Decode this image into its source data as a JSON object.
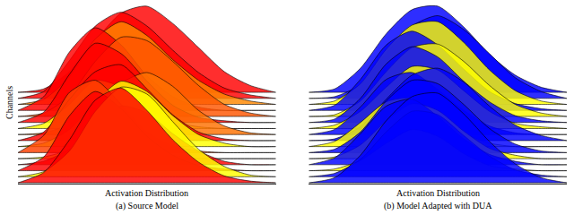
{
  "chart_data": [
    {
      "type": "ridgeline",
      "title": "(a) Source Model",
      "x_label": "Activation Distribution",
      "y_label": "Channels",
      "tick_labels": false,
      "xlim": [
        0,
        10
      ],
      "x": [
        0,
        1,
        2,
        3,
        4,
        5,
        6,
        7,
        8,
        9,
        10
      ],
      "series": [
        {
          "color": "#ff0000",
          "values": [
            0,
            0.6,
            2.5,
            4.8,
            5.5,
            4.2,
            2.5,
            1.2,
            0.4,
            0.1,
            0
          ]
        },
        {
          "color": "#ffff00",
          "values": [
            0,
            0.3,
            1.5,
            3.8,
            5.2,
            4.8,
            3.2,
            1.6,
            0.6,
            0.1,
            0
          ]
        },
        {
          "color": "#ff0000",
          "values": [
            0,
            0.8,
            3.2,
            4.6,
            3.6,
            2.0,
            0.9,
            0.3,
            0.1,
            0,
            0
          ]
        },
        {
          "color": "#ff0000",
          "values": [
            0,
            0.2,
            0.9,
            2.2,
            3.4,
            3.0,
            1.8,
            0.8,
            0.2,
            0,
            0
          ]
        },
        {
          "color": "#ffff00",
          "values": [
            0,
            0.1,
            0.5,
            1.2,
            1.0,
            0.5,
            0.2,
            0,
            0,
            0,
            0
          ]
        },
        {
          "color": "#ff4000",
          "values": [
            0,
            1.0,
            3.5,
            4.2,
            2.8,
            1.2,
            0.4,
            0.1,
            0,
            0,
            0
          ]
        },
        {
          "color": "#ffff00",
          "values": [
            0,
            0.2,
            1.0,
            2.6,
            3.8,
            3.2,
            1.8,
            0.7,
            0.2,
            0,
            0
          ]
        },
        {
          "color": "#ff0000",
          "values": [
            0,
            0.5,
            2.4,
            4.0,
            4.4,
            3.0,
            1.5,
            0.5,
            0.1,
            0,
            0
          ]
        },
        {
          "color": "#ff7000",
          "values": [
            0,
            0.1,
            0.6,
            1.8,
            3.0,
            3.6,
            2.8,
            1.4,
            0.5,
            0.1,
            0
          ]
        },
        {
          "color": "#ffff00",
          "values": [
            0,
            0.3,
            1.4,
            2.8,
            2.4,
            1.2,
            0.4,
            0.1,
            0,
            0,
            0
          ]
        },
        {
          "color": "#ff0000",
          "values": [
            0,
            0.6,
            2.8,
            4.6,
            4.0,
            2.4,
            1.0,
            0.3,
            0.1,
            0,
            0
          ]
        },
        {
          "color": "#ff5500",
          "values": [
            0,
            0.2,
            1.2,
            3.2,
            4.6,
            4.4,
            3.2,
            1.8,
            0.7,
            0.2,
            0
          ]
        },
        {
          "color": "#ff0000",
          "values": [
            0,
            0.8,
            3.4,
            4.8,
            3.8,
            2.0,
            0.8,
            0.2,
            0,
            0,
            0
          ]
        },
        {
          "color": "#ff8800",
          "values": [
            0,
            0.3,
            1.6,
            3.8,
            4.8,
            4.0,
            2.6,
            1.4,
            0.6,
            0.2,
            0
          ]
        },
        {
          "color": "#ff0000",
          "values": [
            0,
            0.4,
            2.2,
            4.2,
            5.0,
            4.2,
            2.8,
            1.5,
            0.6,
            0.2,
            0
          ]
        },
        {
          "color": "#ff0000",
          "values": [
            0,
            0.2,
            1.2,
            3.0,
            4.6,
            5.0,
            4.0,
            2.6,
            1.2,
            0.4,
            0
          ]
        }
      ]
    },
    {
      "type": "ridgeline",
      "title": "(b) Model Adapted with DUA",
      "x_label": "Activation Distribution",
      "tick_labels": false,
      "xlim": [
        0,
        10
      ],
      "x": [
        0,
        1,
        2,
        3,
        4,
        5,
        6,
        7,
        8,
        9,
        10
      ],
      "series": [
        {
          "color": "#0000ff",
          "values": [
            0,
            0.3,
            1.6,
            3.6,
            5.0,
            5.2,
            4.0,
            2.4,
            1.1,
            0.3,
            0
          ]
        },
        {
          "color": "#0000ff",
          "values": [
            0,
            0.2,
            1.0,
            2.6,
            3.8,
            3.6,
            2.4,
            1.2,
            0.4,
            0.1,
            0
          ]
        },
        {
          "color": "#ffff00",
          "values": [
            0,
            0.1,
            0.6,
            1.6,
            2.4,
            2.0,
            1.0,
            0.3,
            0.1,
            0,
            0
          ]
        },
        {
          "color": "#0000ff",
          "values": [
            0,
            0.4,
            1.8,
            3.4,
            3.8,
            2.8,
            1.5,
            0.6,
            0.2,
            0,
            0
          ]
        },
        {
          "color": "#ffff00",
          "values": [
            0,
            0.1,
            0.8,
            2.2,
            3.2,
            2.8,
            1.6,
            0.6,
            0.2,
            0,
            0
          ]
        },
        {
          "color": "#0000ff",
          "values": [
            0,
            0.2,
            1.2,
            3.0,
            4.2,
            4.0,
            2.8,
            1.4,
            0.5,
            0.1,
            0
          ]
        },
        {
          "color": "#ffff00",
          "values": [
            0,
            0.3,
            1.4,
            2.6,
            2.8,
            1.8,
            0.8,
            0.2,
            0,
            0,
            0
          ]
        },
        {
          "color": "#0000ff",
          "values": [
            0,
            0.1,
            0.8,
            2.4,
            3.8,
            4.2,
            3.4,
            2.0,
            0.9,
            0.3,
            0
          ]
        },
        {
          "color": "#0000ff",
          "values": [
            0,
            0.3,
            1.6,
            3.2,
            3.6,
            2.6,
            1.4,
            0.5,
            0.1,
            0,
            0
          ]
        },
        {
          "color": "#ffff00",
          "values": [
            0,
            0.2,
            1.0,
            2.4,
            3.6,
            3.4,
            2.2,
            1.0,
            0.3,
            0.1,
            0
          ]
        },
        {
          "color": "#0000ff",
          "values": [
            0,
            0.2,
            1.4,
            3.4,
            4.4,
            3.8,
            2.4,
            1.2,
            0.4,
            0.1,
            0
          ]
        },
        {
          "color": "#ffff00",
          "values": [
            0,
            0.1,
            0.9,
            2.6,
            4.0,
            4.2,
            3.2,
            1.8,
            0.7,
            0.2,
            0
          ]
        },
        {
          "color": "#0000ff",
          "values": [
            0,
            0.3,
            1.8,
            3.8,
            4.6,
            3.8,
            2.4,
            1.1,
            0.4,
            0.1,
            0
          ]
        },
        {
          "color": "#ffff00",
          "values": [
            0,
            0.2,
            1.2,
            3.2,
            4.6,
            4.8,
            3.6,
            2.0,
            0.8,
            0.2,
            0
          ]
        },
        {
          "color": "#0000ff",
          "values": [
            0,
            0.1,
            0.8,
            2.6,
            4.2,
            4.8,
            4.0,
            2.6,
            1.2,
            0.4,
            0
          ]
        },
        {
          "color": "#0000ff",
          "values": [
            0,
            0.2,
            1.4,
            3.4,
            4.8,
            5.0,
            3.8,
            2.2,
            1.0,
            0.3,
            0
          ]
        }
      ]
    }
  ]
}
